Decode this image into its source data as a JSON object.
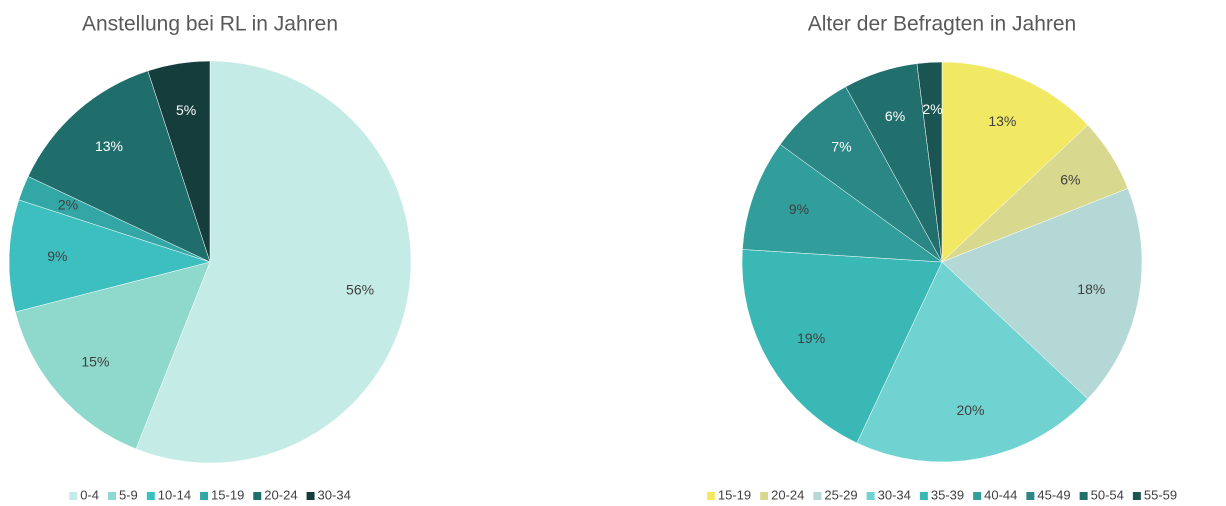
{
  "chart_data": [
    {
      "type": "pie",
      "title": "Anstellung bei RL in Jahren",
      "categories": [
        "0-4",
        "5-9",
        "10-14",
        "15-19",
        "20-24",
        "30-34"
      ],
      "values": [
        56,
        15,
        9,
        2,
        13,
        5
      ],
      "value_labels": [
        "56%",
        "15%",
        "9%",
        "2%",
        "13%",
        "5%"
      ],
      "colors": [
        "#c4ebe5",
        "#8fd8cc",
        "#3dbfbf",
        "#33a6a6",
        "#206e6b",
        "#153d3b"
      ],
      "legend": "bottom"
    },
    {
      "type": "pie",
      "title": "Alter der Befragten in Jahren",
      "categories": [
        "15-19",
        "20-24",
        "25-29",
        "30-34",
        "35-39",
        "40-44",
        "45-49",
        "50-54",
        "55-59"
      ],
      "values": [
        13,
        6,
        18,
        20,
        19,
        9,
        7,
        6,
        2
      ],
      "value_labels": [
        "13%",
        "6%",
        "18%",
        "20%",
        "19%",
        "9%",
        "7%",
        "6%",
        "2%"
      ],
      "colors": [
        "#f1e964",
        "#d8d88e",
        "#b3d8d6",
        "#71d3d1",
        "#3ab8b6",
        "#319e9c",
        "#2a8785",
        "#22706d",
        "#1a5553"
      ],
      "legend": "bottom"
    }
  ]
}
